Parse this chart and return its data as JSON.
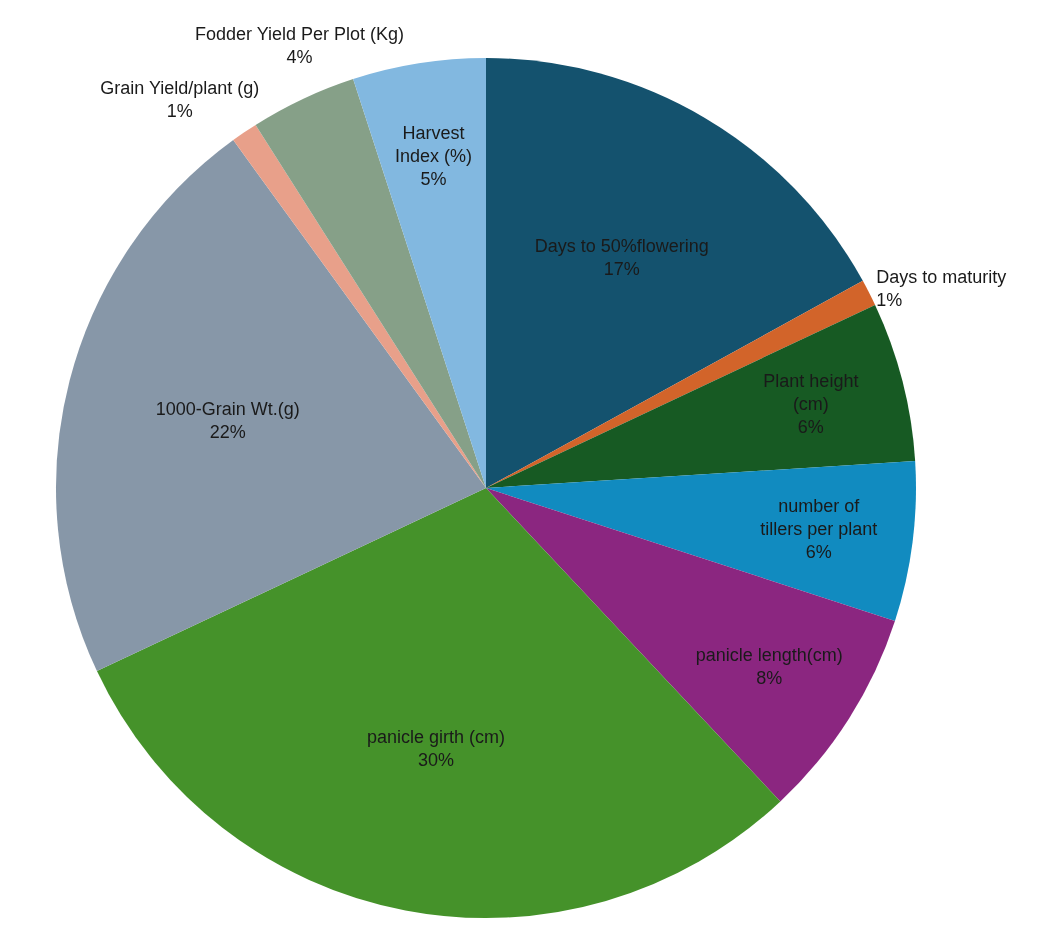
{
  "chart_data": {
    "type": "pie",
    "categories": [
      "Days to 50%flowering",
      "Days to maturity",
      "Plant height (cm)",
      "number of tillers per plant",
      "panicle length(cm)",
      "panicle girth (cm)",
      "1000-Grain Wt.(g)",
      "Grain Yield/plant (g)",
      "Fodder Yield Per Plot (Kg)",
      "Harvest Index (%)"
    ],
    "values": [
      17,
      1,
      6,
      6,
      8,
      30,
      22,
      1,
      4,
      5
    ],
    "value_labels": [
      "17%",
      "1%",
      "6%",
      "6%",
      "8%",
      "30%",
      "22%",
      "1%",
      "4%",
      "5%"
    ],
    "colors": [
      "#14526e",
      "#d2642a",
      "#175a23",
      "#118bc0",
      "#8b2680",
      "#45922a",
      "#8797a8",
      "#e8a08a",
      "#86a088",
      "#82b8e0"
    ],
    "legend": false
  }
}
